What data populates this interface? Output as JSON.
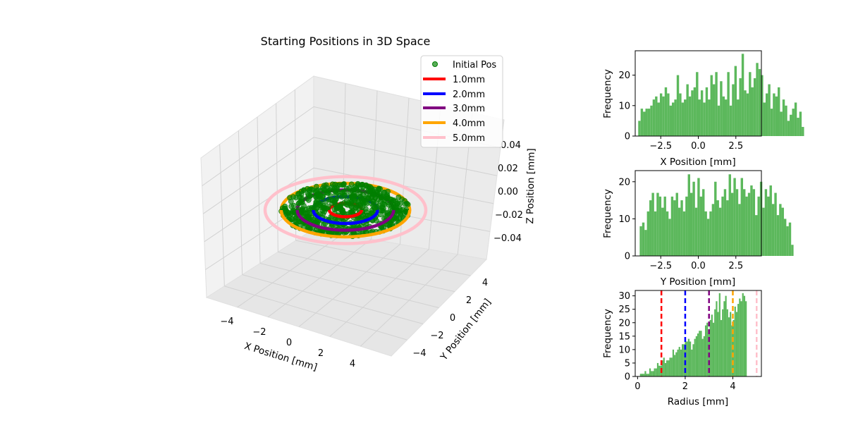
{
  "colors": {
    "points": "#008000",
    "hist": "#5cb85c",
    "rings": [
      "#ff0000",
      "#0000ff",
      "#800080",
      "#ffa500",
      "#ffc0cb"
    ]
  },
  "chart_data": [
    {
      "type": "scatter",
      "projection": "3d",
      "title": "Starting Positions in 3D Space",
      "xlabel": "X Position [mm]",
      "ylabel": "Y Position [mm]",
      "zlabel": "Z Position [mm]",
      "xlim": [
        -5.5,
        5.5
      ],
      "ylim": [
        -5.5,
        5.5
      ],
      "zlim": [
        -0.05,
        0.05
      ],
      "xticks": [
        "−4",
        "−2",
        "0",
        "2",
        "4"
      ],
      "yticks": [
        "−4",
        "−2",
        "0",
        "2",
        "4"
      ],
      "zticks": [
        "0.04",
        "0.02",
        "0.00",
        "−0.02",
        "−0.04"
      ],
      "grid": true,
      "legend_position": "top-right",
      "legend": [
        "Initial Pos",
        "1.0mm",
        "2.0mm",
        "3.0mm",
        "4.0mm",
        "5.0mm"
      ],
      "scatter_series": {
        "name": "Initial Pos",
        "z": 0,
        "r_max": 4.0,
        "n_points": 600
      },
      "rings": [
        {
          "name": "1.0mm",
          "radius": 1.0,
          "color": "#ff0000"
        },
        {
          "name": "2.0mm",
          "radius": 2.0,
          "color": "#0000ff"
        },
        {
          "name": "3.0mm",
          "radius": 3.0,
          "color": "#800080"
        },
        {
          "name": "4.0mm",
          "radius": 4.0,
          "color": "#ffa500"
        },
        {
          "name": "5.0mm",
          "radius": 5.0,
          "color": "#ffc0cb"
        }
      ]
    },
    {
      "type": "bar",
      "subtype": "histogram",
      "xlabel": "X Position [mm]",
      "ylabel": "Frequency",
      "xlim": [
        -4.2,
        4.2
      ],
      "ylim": [
        0,
        28
      ],
      "xticks": [
        {
          "v": -2.5,
          "t": "−2.5"
        },
        {
          "v": 0.0,
          "t": "0.0"
        },
        {
          "v": 2.5,
          "t": "2.5"
        }
      ],
      "yticks": [
        {
          "v": 0,
          "t": "0"
        },
        {
          "v": 10,
          "t": "10"
        },
        {
          "v": 20,
          "t": "20"
        }
      ],
      "bin_start": -4.0,
      "bin_width": 0.16,
      "values": [
        5,
        9,
        8,
        9,
        9,
        10,
        12,
        13,
        11,
        14,
        13,
        16,
        14,
        10,
        11,
        12,
        20,
        14,
        11,
        12,
        17,
        13,
        15,
        16,
        21,
        12,
        15,
        11,
        16,
        12,
        20,
        17,
        21,
        10,
        18,
        13,
        12,
        21,
        10,
        17,
        23,
        12,
        19,
        27,
        15,
        14,
        21,
        16,
        19,
        24,
        22,
        20,
        11,
        14,
        17,
        9,
        14,
        13,
        16,
        8,
        12,
        10,
        5,
        7,
        9,
        11,
        6,
        8,
        3
      ]
    },
    {
      "type": "bar",
      "subtype": "histogram",
      "xlabel": "Y Position [mm]",
      "ylabel": "Frequency",
      "xlim": [
        -4.2,
        4.2
      ],
      "ylim": [
        0,
        23
      ],
      "xticks": [
        {
          "v": -2.5,
          "t": "−2.5"
        },
        {
          "v": 0.0,
          "t": "0.0"
        },
        {
          "v": 2.5,
          "t": "2.5"
        }
      ],
      "yticks": [
        {
          "v": 0,
          "t": "0"
        },
        {
          "v": 10,
          "t": "10"
        },
        {
          "v": 20,
          "t": "20"
        }
      ],
      "bin_start": -3.9,
      "bin_width": 0.16,
      "values": [
        8,
        9,
        7,
        12,
        15,
        17,
        12,
        17,
        16,
        13,
        16,
        12,
        10,
        16,
        15,
        17,
        13,
        15,
        12,
        16,
        22,
        17,
        20,
        13,
        21,
        16,
        18,
        12,
        10,
        12,
        14,
        20,
        15,
        13,
        16,
        18,
        15,
        22,
        17,
        21,
        18,
        14,
        21,
        18,
        16,
        17,
        19,
        18,
        11,
        16,
        20,
        13,
        18,
        16,
        19,
        14,
        17,
        11,
        14,
        13,
        10,
        8,
        9,
        3
      ]
    },
    {
      "type": "bar",
      "subtype": "histogram",
      "xlabel": "Radius [mm]",
      "ylabel": "Frequency",
      "xlim": [
        -0.1,
        5.2
      ],
      "ylim": [
        0,
        32
      ],
      "xticks": [
        {
          "v": 0,
          "t": "0"
        },
        {
          "v": 2,
          "t": "2"
        },
        {
          "v": 4,
          "t": "4"
        }
      ],
      "yticks": [
        {
          "v": 0,
          "t": "0"
        },
        {
          "v": 5,
          "t": "5"
        },
        {
          "v": 10,
          "t": "10"
        },
        {
          "v": 15,
          "t": "15"
        },
        {
          "v": 20,
          "t": "20"
        },
        {
          "v": 25,
          "t": "25"
        },
        {
          "v": 30,
          "t": "30"
        }
      ],
      "bin_start": 0.1,
      "bin_width": 0.065,
      "values": [
        1,
        1,
        1,
        2,
        1,
        1,
        3,
        2,
        2,
        3,
        3,
        5,
        4,
        4,
        6,
        7,
        5,
        6,
        6,
        7,
        7,
        10,
        8,
        9,
        10,
        11,
        10,
        12,
        12,
        13,
        13,
        14,
        13,
        10,
        12,
        14,
        15,
        16,
        17,
        17,
        14,
        15,
        19,
        20,
        17,
        21,
        23,
        20,
        25,
        28,
        24,
        31,
        21,
        25,
        28,
        30,
        25,
        22,
        24,
        19,
        21,
        26,
        24,
        27,
        29,
        28,
        31,
        30,
        28
      ],
      "vlines": [
        {
          "x": 1.0,
          "color": "#ff0000"
        },
        {
          "x": 2.0,
          "color": "#0000ff"
        },
        {
          "x": 3.0,
          "color": "#800080"
        },
        {
          "x": 4.0,
          "color": "#ffa500"
        },
        {
          "x": 5.0,
          "color": "#ffc0cb"
        }
      ]
    }
  ]
}
